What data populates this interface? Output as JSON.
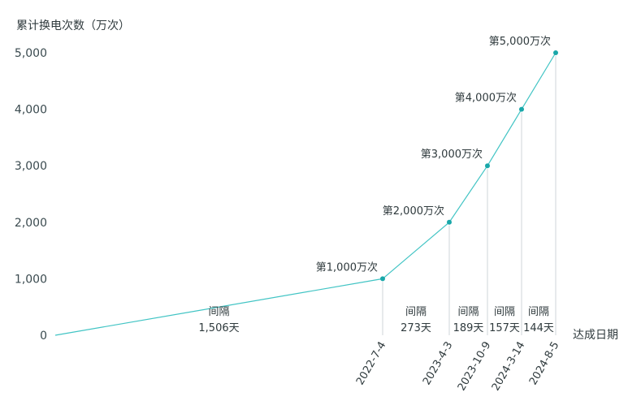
{
  "chart_data": {
    "type": "line",
    "ylabel": "累计换电次数（万次）",
    "xlabel": "达成日期",
    "ylim": [
      0,
      5000
    ],
    "yticks": [
      "0",
      "1,000",
      "2,000",
      "3,000",
      "4,000",
      "5,000"
    ],
    "points": [
      {
        "date": "",
        "value": 0,
        "label": ""
      },
      {
        "date": "2022-7-4",
        "value": 1000,
        "label": "第1,000万次"
      },
      {
        "date": "2023-4-3",
        "value": 2000,
        "label": "第2,000万次"
      },
      {
        "date": "2023-10-9",
        "value": 3000,
        "label": "第3,000万次"
      },
      {
        "date": "2024-3-14",
        "value": 4000,
        "label": "第4,000万次"
      },
      {
        "date": "2024-8-5",
        "value": 5000,
        "label": "第5,000万次"
      }
    ],
    "intervals": [
      {
        "title": "间隔",
        "days": "1,506天"
      },
      {
        "title": "间隔",
        "days": "273天"
      },
      {
        "title": "间隔",
        "days": "189天"
      },
      {
        "title": "间隔",
        "days": "157天"
      },
      {
        "title": "间隔",
        "days": "144天"
      }
    ],
    "colors": {
      "line": "#41c4c4",
      "marker": "#19a7a9",
      "guide": "#cfd6d8",
      "text": "#2f3a3d"
    }
  }
}
